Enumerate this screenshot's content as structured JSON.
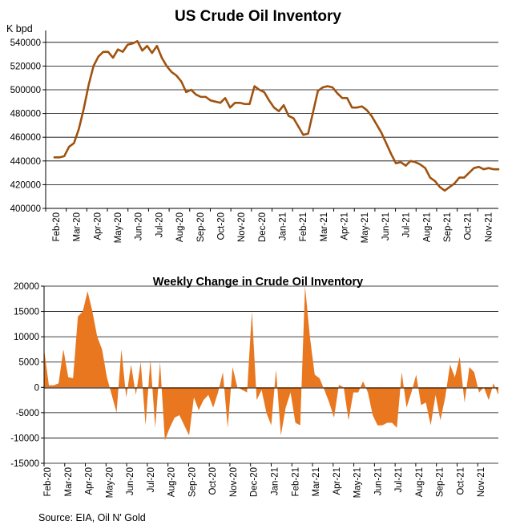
{
  "source_note": "Source: EIA, Oil N' Gold",
  "chart_data": [
    {
      "type": "line",
      "title": "US Crude Oil Inventory",
      "ylabel": "K bpd",
      "xlabel": "",
      "ylim": [
        400000,
        550000
      ],
      "yticks": [
        "400000",
        "420000",
        "440000",
        "460000",
        "480000",
        "500000",
        "520000",
        "540000"
      ],
      "month_labels": [
        "Feb-20",
        "Mar-20",
        "Apr-20",
        "May-20",
        "Jun-20",
        "Jul-20",
        "Aug-20",
        "Sep-20",
        "Oct-20",
        "Nov-20",
        "Dec-20",
        "Jan-21",
        "Feb-21",
        "Mar-21",
        "Apr-21",
        "May-21",
        "Jun-21",
        "Jul-21",
        "Aug-21",
        "Sep-21",
        "Oct-21",
        "Nov-21"
      ],
      "series": [
        {
          "name": "Crude Oil Inventory",
          "color": "#a0520f",
          "values": [
            443000,
            443000,
            444000,
            452000,
            455000,
            467000,
            484000,
            504000,
            520000,
            528000,
            532000,
            532000,
            527000,
            534000,
            532000,
            538000,
            539000,
            541000,
            533000,
            537000,
            531000,
            537000,
            527000,
            520000,
            515000,
            512000,
            507000,
            498000,
            500000,
            496000,
            494000,
            494000,
            491000,
            490000,
            489000,
            493000,
            485000,
            489000,
            489000,
            488000,
            488000,
            503000,
            500000,
            498000,
            491000,
            485000,
            482000,
            487000,
            478000,
            476000,
            469000,
            462000,
            463000,
            481000,
            499000,
            502000,
            503000,
            502000,
            497000,
            493000,
            493000,
            485000,
            485000,
            486000,
            483000,
            478000,
            471000,
            464000,
            455000,
            446000,
            438000,
            439000,
            436000,
            440000,
            439000,
            437000,
            434000,
            426000,
            423000,
            418000,
            415000,
            418000,
            421000,
            426000,
            426000,
            430000,
            434000,
            435000,
            433000,
            434000,
            433000,
            433000
          ]
        }
      ]
    },
    {
      "type": "area",
      "title": "Weekly Change in Crude Oil Inventory",
      "xlabel": "",
      "ylabel": "",
      "ylim": [
        -15000,
        20000
      ],
      "yticks": [
        "-15000",
        "-10000",
        "-5000",
        "0",
        "5000",
        "10000",
        "15000",
        "20000"
      ],
      "month_labels": [
        "Feb-20",
        "Mar-20",
        "Apr-20",
        "May-20",
        "Jun-20",
        "Jul-20",
        "Aug-20",
        "Sep-20",
        "Oct-20",
        "Nov-20",
        "Dec-20",
        "Jan-21",
        "Feb-21",
        "Mar-21",
        "Apr-21",
        "May-21",
        "Jun-21",
        "Jul-21",
        "Aug-21",
        "Sep-21",
        "Oct-21",
        "Nov-21"
      ],
      "series": [
        {
          "name": "Weekly Change",
          "color": "#e8771f",
          "values": [
            7500,
            400,
            400,
            800,
            7500,
            2000,
            1800,
            14000,
            15000,
            19000,
            15000,
            10000,
            7500,
            2000,
            -1500,
            -5000,
            7500,
            -2000,
            4500,
            -1500,
            5000,
            -7500,
            5500,
            -8000,
            5000,
            -10500,
            -8000,
            -6000,
            -5500,
            -7500,
            -9500,
            -2000,
            -4500,
            -2500,
            -1500,
            -4000,
            -1000,
            3000,
            -8000,
            4000,
            0,
            -500,
            -1000,
            15000,
            -2500,
            -500,
            -5000,
            -7500,
            3500,
            -9500,
            -4000,
            -1000,
            -7000,
            -7500,
            20000,
            10000,
            2500,
            1800,
            -500,
            -3000,
            -6000,
            500,
            0,
            -6500,
            -1000,
            -1000,
            1200,
            -1000,
            -5500,
            -7500,
            -7500,
            -7000,
            -7000,
            -8000,
            3000,
            -4000,
            -1000,
            2500,
            -3500,
            -3000,
            -7500,
            -1500,
            -6500,
            -2000,
            4500,
            2000,
            6000,
            -3000,
            4000,
            3000,
            -1000,
            0,
            -2500,
            800,
            -1500
          ]
        }
      ]
    }
  ]
}
